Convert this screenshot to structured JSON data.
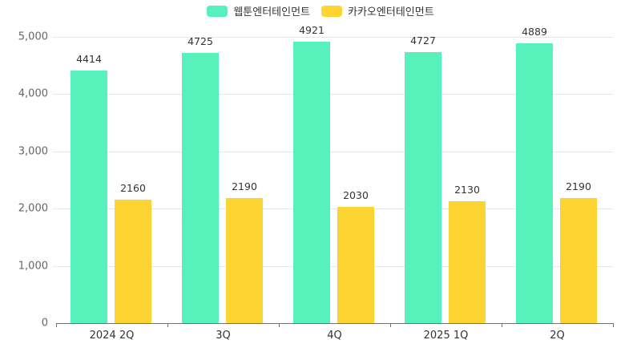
{
  "legend": [
    {
      "label": "웹툰엔터테인먼트",
      "color": "#57f2bc"
    },
    {
      "label": "카카오엔터테인먼트",
      "color": "#fed432"
    }
  ],
  "y_axis": {
    "ticks": [
      "0",
      "1,000",
      "2,000",
      "3,000",
      "4,000",
      "5,000"
    ]
  },
  "x_axis": {
    "labels": [
      "2024 2Q",
      "3Q",
      "4Q",
      "2025 1Q",
      "2Q"
    ]
  },
  "chart_data": {
    "type": "bar",
    "title": "",
    "xlabel": "",
    "ylabel": "",
    "categories": [
      "2024 2Q",
      "3Q",
      "4Q",
      "2025 1Q",
      "2Q"
    ],
    "series": [
      {
        "name": "웹툰엔터테인먼트",
        "color": "#57f2bc",
        "values": [
          4414,
          4725,
          4921,
          4727,
          4889
        ]
      },
      {
        "name": "카카오엔터테인먼트",
        "color": "#fed432",
        "values": [
          2160,
          2190,
          2030,
          2130,
          2190
        ]
      }
    ],
    "ylim": [
      0,
      5000
    ],
    "yticks": [
      0,
      1000,
      2000,
      3000,
      4000,
      5000
    ],
    "grid": true,
    "legend_position": "top",
    "data_labels": true
  }
}
